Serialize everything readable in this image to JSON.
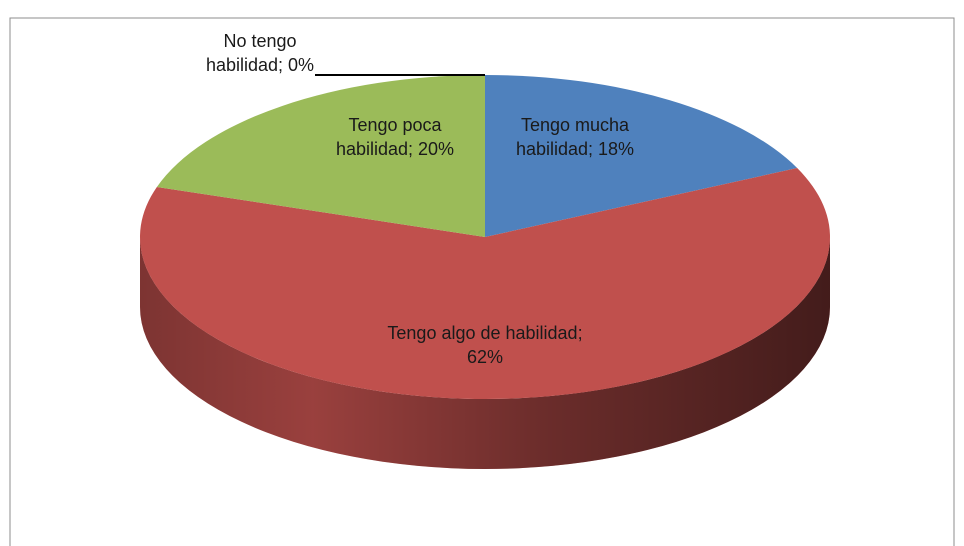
{
  "chart_data": {
    "type": "pie",
    "values": [
      18,
      62,
      20,
      0
    ],
    "value_labels": [
      "Tengo mucha habilidad; 18%",
      "Tengo algo de habilidad; 62%",
      "Tengo poca habilidad; 20%",
      "No tengo habilidad; 0%"
    ],
    "colors": [
      "#4f81bd",
      "#c0504d",
      "#9bbb59",
      "#8064a2"
    ],
    "3d": true
  }
}
